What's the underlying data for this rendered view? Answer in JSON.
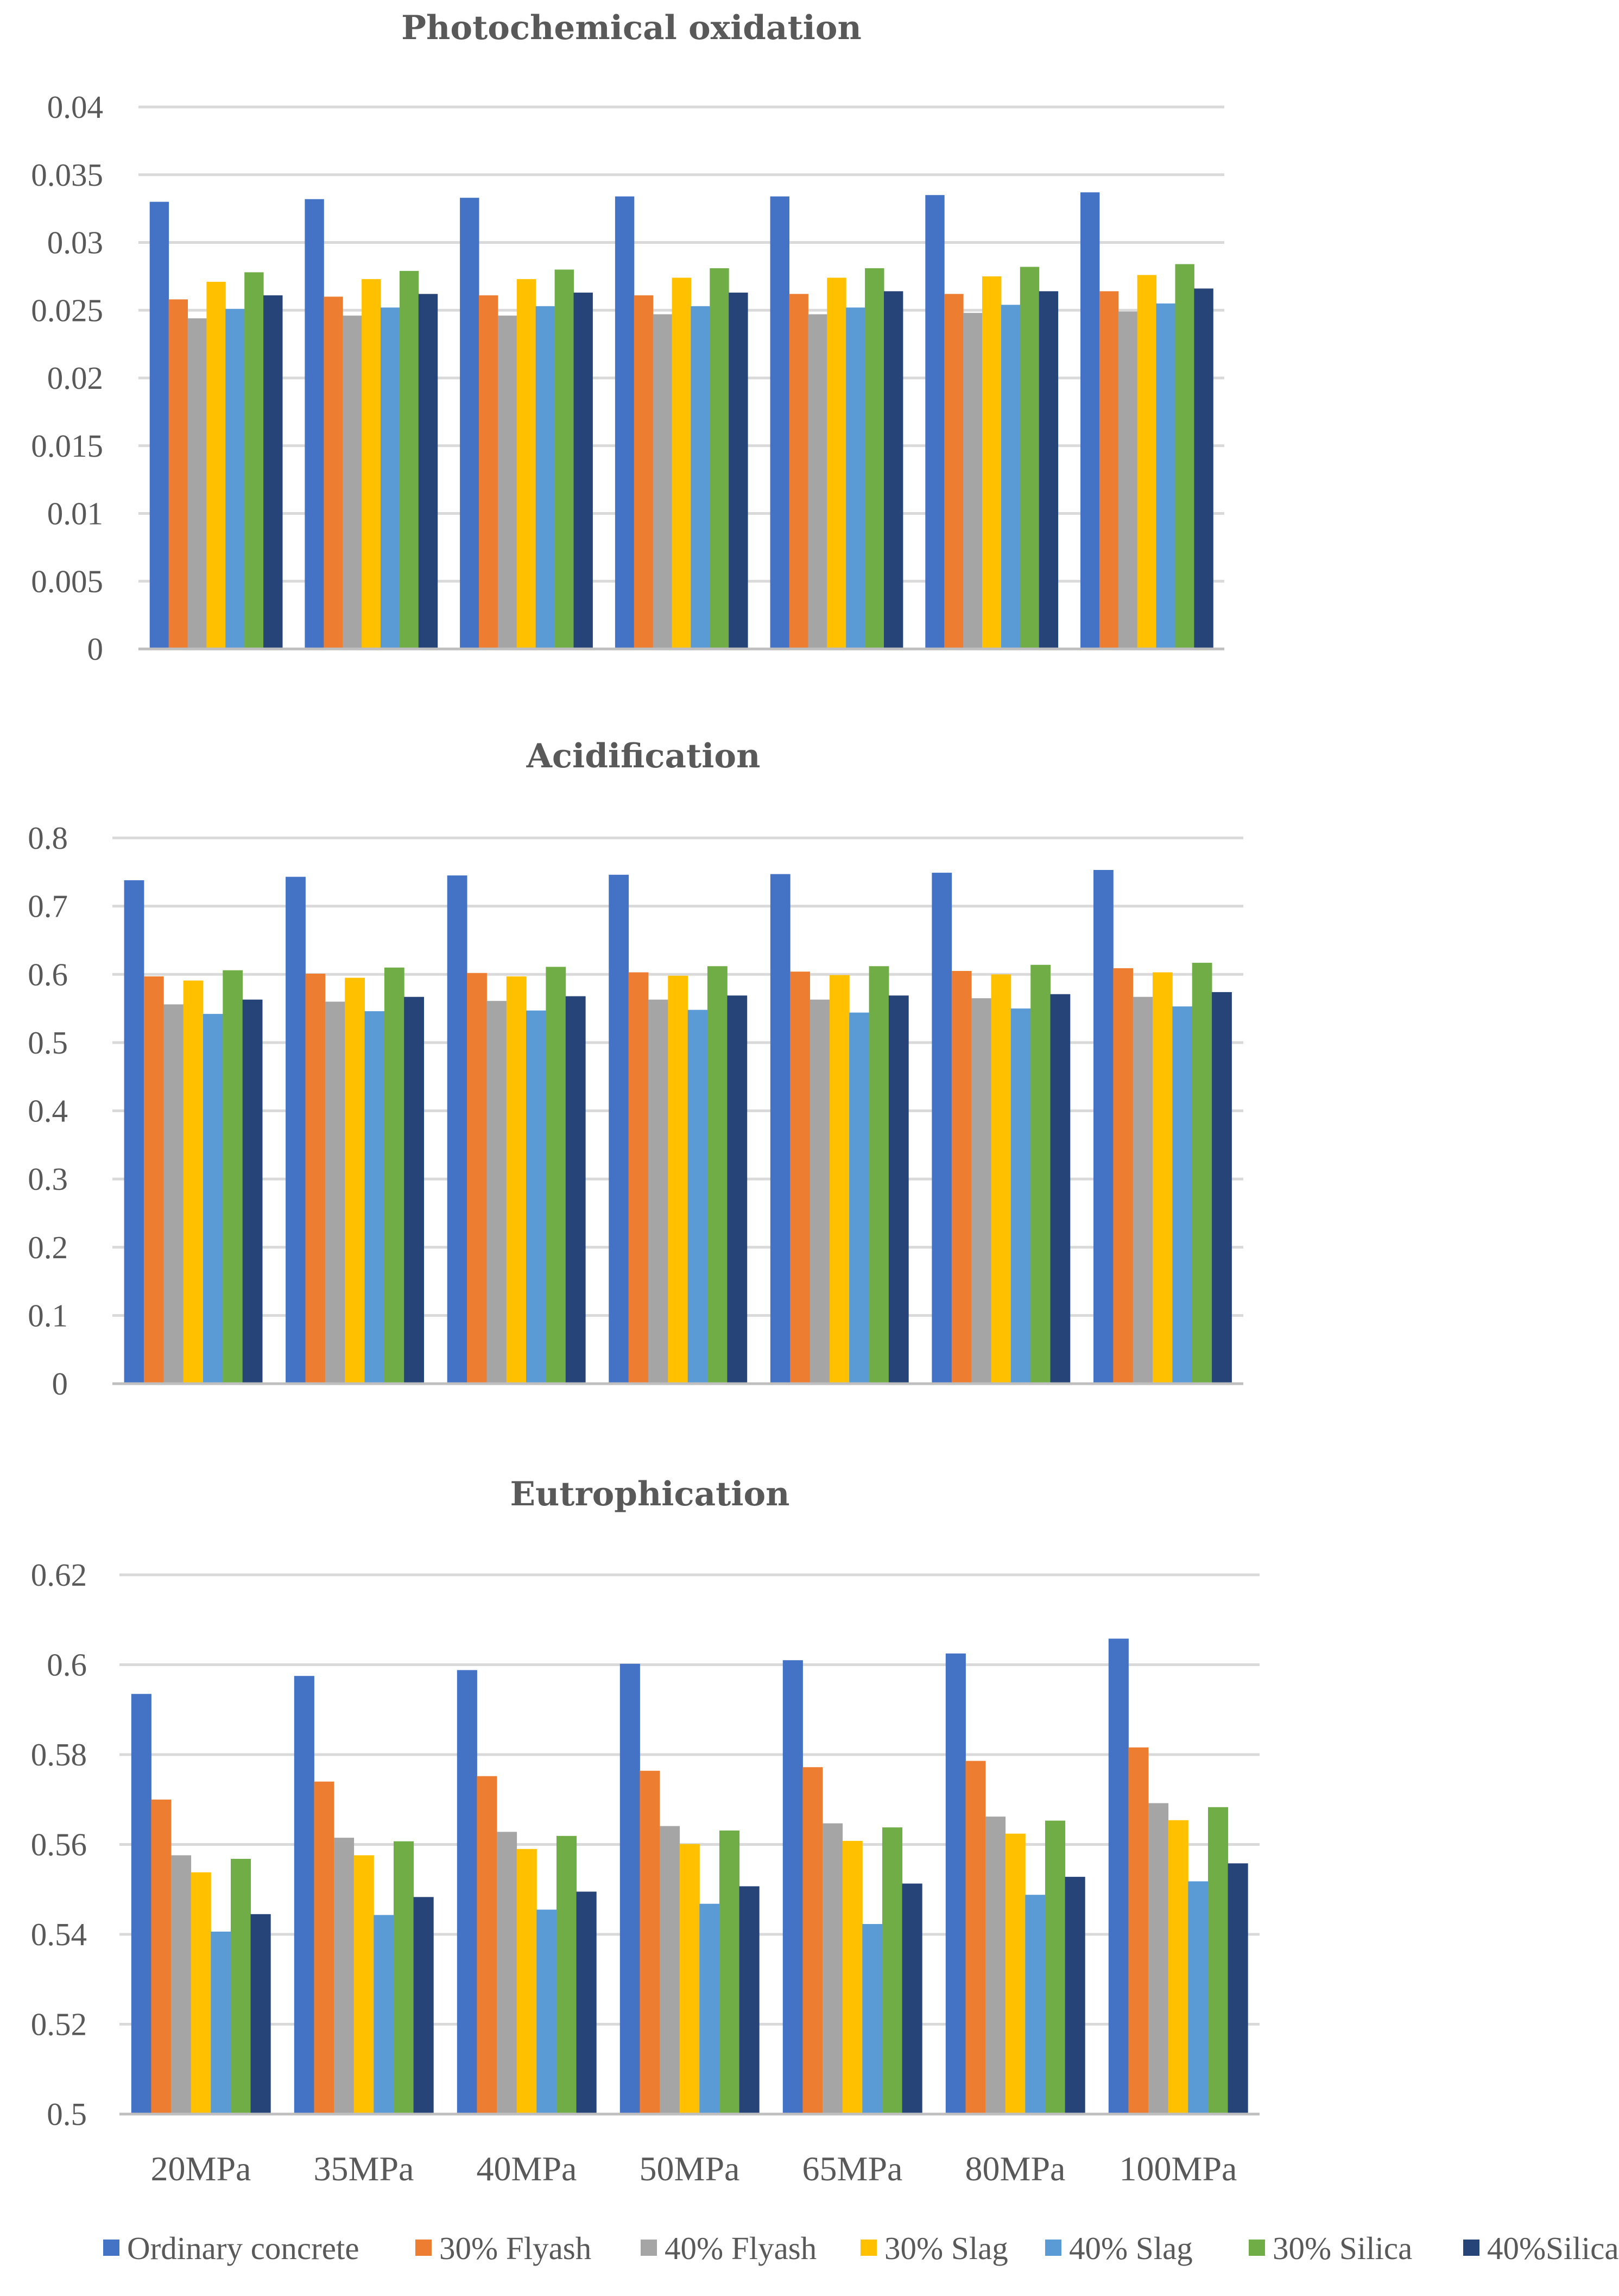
{
  "chart_data": [
    {
      "type": "bar",
      "title": "Photochemical oxidation",
      "ylim": [
        0,
        0.04
      ],
      "yticks": [
        "0",
        "0.005",
        "0.01",
        "0.015",
        "0.02",
        "0.025",
        "0.03",
        "0.035",
        "0.04"
      ],
      "grid": true,
      "categories": [
        "20MPa",
        "35MPa",
        "40MPa",
        "50MPa",
        "65MPa",
        "80MPa",
        "100MPa"
      ],
      "series": [
        {
          "name": "Ordinary concrete",
          "values": [
            0.033,
            0.0332,
            0.0333,
            0.0334,
            0.0334,
            0.0335,
            0.0337
          ]
        },
        {
          "name": "30% Flyash",
          "values": [
            0.0258,
            0.026,
            0.0261,
            0.0261,
            0.0262,
            0.0262,
            0.0264
          ]
        },
        {
          "name": "40% Flyash",
          "values": [
            0.0244,
            0.0246,
            0.0246,
            0.0247,
            0.0247,
            0.0248,
            0.0249
          ]
        },
        {
          "name": "30% Slag",
          "values": [
            0.0271,
            0.0273,
            0.0273,
            0.0274,
            0.0274,
            0.0275,
            0.0276
          ]
        },
        {
          "name": "40% Slag",
          "values": [
            0.0251,
            0.0252,
            0.0253,
            0.0253,
            0.0252,
            0.0254,
            0.0255
          ]
        },
        {
          "name": "30% Silica",
          "values": [
            0.0278,
            0.0279,
            0.028,
            0.0281,
            0.0281,
            0.0282,
            0.0284
          ]
        },
        {
          "name": "40%Silica",
          "values": [
            0.0261,
            0.0262,
            0.0263,
            0.0263,
            0.0264,
            0.0264,
            0.0266
          ]
        }
      ]
    },
    {
      "type": "bar",
      "title": "Acidification",
      "ylim": [
        0,
        0.8
      ],
      "yticks": [
        "0",
        "0.1",
        "0.2",
        "0.3",
        "0.4",
        "0.5",
        "0.6",
        "0.7",
        "0.8"
      ],
      "grid": true,
      "categories": [
        "20MPa",
        "35MPa",
        "40MPa",
        "50MPa",
        "65MPa",
        "80MPa",
        "100MPa"
      ],
      "series": [
        {
          "name": "Ordinary concrete",
          "values": [
            0.738,
            0.743,
            0.745,
            0.746,
            0.747,
            0.749,
            0.753
          ]
        },
        {
          "name": "30% Flyash",
          "values": [
            0.597,
            0.601,
            0.602,
            0.603,
            0.604,
            0.605,
            0.609
          ]
        },
        {
          "name": "40% Flyash",
          "values": [
            0.556,
            0.56,
            0.561,
            0.563,
            0.563,
            0.565,
            0.567
          ]
        },
        {
          "name": "30% Slag",
          "values": [
            0.591,
            0.595,
            0.597,
            0.598,
            0.599,
            0.6,
            0.603
          ]
        },
        {
          "name": "40% Slag",
          "values": [
            0.542,
            0.546,
            0.547,
            0.548,
            0.544,
            0.55,
            0.553
          ]
        },
        {
          "name": "30% Silica",
          "values": [
            0.606,
            0.61,
            0.611,
            0.612,
            0.612,
            0.614,
            0.617
          ]
        },
        {
          "name": "40%Silica",
          "values": [
            0.563,
            0.567,
            0.568,
            0.569,
            0.569,
            0.571,
            0.574
          ]
        }
      ]
    },
    {
      "type": "bar",
      "title": "Eutrophication",
      "ylim": [
        0.5,
        0.62
      ],
      "yticks": [
        "0.5",
        "0.52",
        "0.54",
        "0.56",
        "0.58",
        "0.6",
        "0.62"
      ],
      "grid": true,
      "categories": [
        "20MPa",
        "35MPa",
        "40MPa",
        "50MPa",
        "65MPa",
        "80MPa",
        "100MPa"
      ],
      "series": [
        {
          "name": "Ordinary concrete",
          "values": [
            0.5935,
            0.5975,
            0.5988,
            0.6002,
            0.601,
            0.6025,
            0.6058
          ]
        },
        {
          "name": "30% Flyash",
          "values": [
            0.57,
            0.574,
            0.5752,
            0.5764,
            0.5772,
            0.5786,
            0.5816
          ]
        },
        {
          "name": "40% Flyash",
          "values": [
            0.5576,
            0.5615,
            0.5628,
            0.5641,
            0.5647,
            0.5662,
            0.5692
          ]
        },
        {
          "name": "30% Slag",
          "values": [
            0.5538,
            0.5576,
            0.559,
            0.5601,
            0.5608,
            0.5624,
            0.5654
          ]
        },
        {
          "name": "40% Slag",
          "values": [
            0.5406,
            0.5443,
            0.5455,
            0.5468,
            0.5423,
            0.5488,
            0.5518
          ]
        },
        {
          "name": "30% Silica",
          "values": [
            0.5568,
            0.5607,
            0.5619,
            0.5631,
            0.5638,
            0.5653,
            0.5683
          ]
        },
        {
          "name": "40%Silica",
          "values": [
            0.5445,
            0.5483,
            0.5495,
            0.5507,
            0.5513,
            0.5528,
            0.5558
          ]
        }
      ]
    }
  ],
  "legend": {
    "placement": "bottom",
    "items": [
      {
        "name": "Ordinary concrete",
        "color": "#4472c4"
      },
      {
        "name": "30% Flyash",
        "color": "#ed7d31"
      },
      {
        "name": "40% Flyash",
        "color": "#a5a5a5"
      },
      {
        "name": "30% Slag",
        "color": "#ffc000"
      },
      {
        "name": "40% Slag",
        "color": "#5b9bd5"
      },
      {
        "name": "30% Silica",
        "color": "#70ad47"
      },
      {
        "name": "40%Silica",
        "color": "#264478"
      }
    ]
  }
}
